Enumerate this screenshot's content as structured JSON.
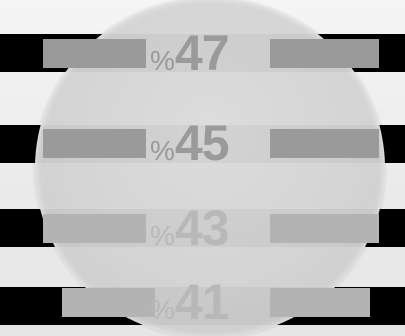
{
  "rows": [
    {
      "symbol": "%",
      "value": "47"
    },
    {
      "symbol": "%",
      "value": "45"
    },
    {
      "symbol": "%",
      "value": "43"
    },
    {
      "symbol": "%",
      "value": "41"
    }
  ],
  "colors": {
    "band": "#000000",
    "lens": "#d4d4d4",
    "inner_bar": "#9a9a9a",
    "text": "#9a9a9a",
    "background": "#eeeeee"
  }
}
